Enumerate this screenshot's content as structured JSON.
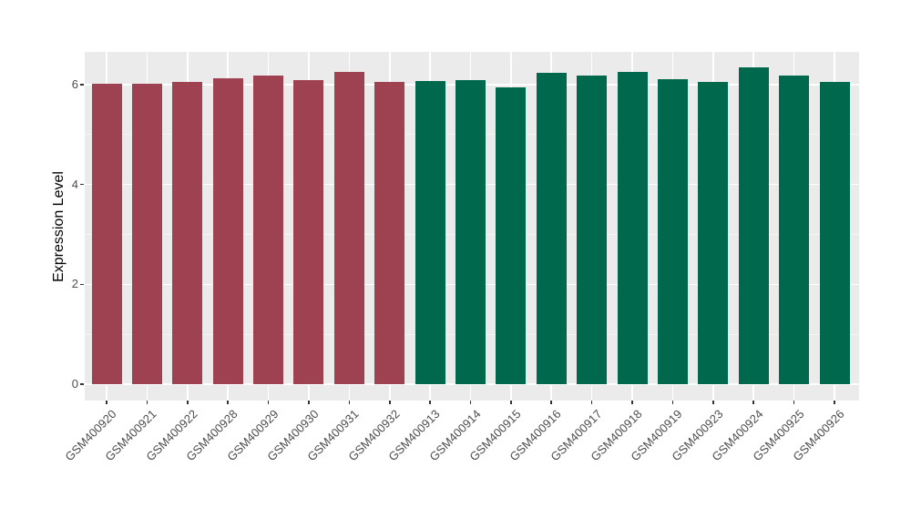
{
  "chart_data": {
    "type": "bar",
    "title": "",
    "xlabel": "",
    "ylabel": "Expression Level",
    "categories": [
      "GSM400920",
      "GSM400921",
      "GSM400922",
      "GSM400928",
      "GSM400929",
      "GSM400930",
      "GSM400931",
      "GSM400932",
      "GSM400913",
      "GSM400914",
      "GSM400915",
      "GSM400916",
      "GSM400917",
      "GSM400918",
      "GSM400919",
      "GSM400923",
      "GSM400924",
      "GSM400925",
      "GSM400926"
    ],
    "values": [
      6.01,
      6.01,
      6.06,
      6.12,
      6.18,
      6.09,
      6.26,
      6.05,
      6.07,
      6.09,
      5.94,
      6.24,
      6.19,
      6.25,
      6.11,
      6.06,
      6.34,
      6.18,
      6.06
    ],
    "bar_groups": [
      "red",
      "red",
      "red",
      "red",
      "red",
      "red",
      "red",
      "red",
      "green",
      "green",
      "green",
      "green",
      "green",
      "green",
      "green",
      "green",
      "green",
      "green",
      "green"
    ],
    "group_colors": {
      "red": "#9E4252",
      "green": "#00684C"
    },
    "yticks": [
      0,
      2,
      4,
      6
    ],
    "yticks_minor": [
      1,
      3,
      5
    ],
    "ylim": [
      -0.33,
      6.66
    ],
    "x_tick_label_angle": 45,
    "grid": true,
    "legend": "none",
    "colors": {
      "panel_bg": "#EBEBEB",
      "grid_major": "#FFFFFF",
      "grid_minor": "#F5F5F5",
      "axis_tick": "#333333",
      "tick_label": "#4D4D4D",
      "axis_title": "#000000"
    }
  }
}
